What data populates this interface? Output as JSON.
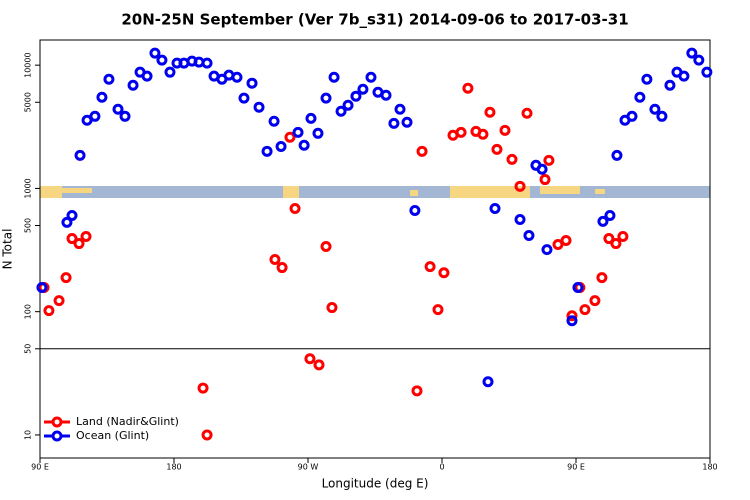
{
  "chart_data": {
    "type": "scatter",
    "title": "20N-25N September (Ver 7b_s31)   2014-09-06 to 2017-03-31",
    "x_label": "Longitude (deg E)",
    "y_label": "N Total",
    "xlim": [
      90,
      540
    ],
    "xticks": [
      {
        "value": 90,
        "label": "90 E"
      },
      {
        "value": 180,
        "label": "180"
      },
      {
        "value": 270,
        "label": "90 W"
      },
      {
        "value": 360,
        "label": "0"
      },
      {
        "value": 450,
        "label": "90 E"
      },
      {
        "value": 540,
        "label": "180"
      }
    ],
    "ylim": [
      6.5,
      16000
    ],
    "yticks": [
      10,
      50,
      100,
      500,
      1000,
      5000,
      10000
    ],
    "log_y": true,
    "grid": false,
    "hlines": [
      50
    ],
    "legend": "bottom-left",
    "series": [
      {
        "name": "Land (Nadir&Glint)",
        "color": "#ff0000",
        "x": [
          92.7,
          96.0,
          102.8,
          107.5,
          111.5,
          116.2,
          120.9,
          199.5,
          202.2,
          247.8,
          252.6,
          257.9,
          261.3,
          271.3,
          277.4,
          282.1,
          286.1,
          343.2,
          346.6,
          352.0,
          357.3,
          361.3,
          367.4,
          372.8,
          377.4,
          382.8,
          387.5,
          392.2,
          396.9,
          402.3,
          407.0,
          412.4,
          417.1,
          429.2,
          431.8,
          437.9,
          443.3,
          447.3,
          452.6,
          456.0,
          462.7,
          467.4,
          472.1,
          476.8,
          481.5
        ],
        "values": [
          157,
          102,
          123,
          189,
          392,
          357,
          407,
          24,
          10,
          265,
          228,
          2600,
          687,
          41.5,
          37,
          338,
          108,
          22.8,
          2000,
          232,
          104,
          207,
          2700,
          2850,
          6500,
          2900,
          2750,
          4150,
          2075,
          2960,
          1720,
          1040,
          4075,
          1180,
          1690,
          351,
          378,
          92.7,
          157,
          104,
          123,
          189,
          392,
          357,
          407
        ]
      },
      {
        "name": "Ocean (Glint)",
        "color": "#0000ee",
        "x": [
          91.3,
          108.1,
          111.5,
          116.9,
          121.6,
          126.9,
          131.6,
          136.3,
          142.4,
          147.1,
          152.5,
          157.2,
          161.9,
          167.2,
          171.9,
          177.3,
          182.0,
          186.7,
          192.1,
          196.8,
          202.2,
          206.9,
          212.2,
          216.9,
          222.3,
          227.0,
          232.4,
          237.1,
          242.5,
          247.2,
          251.9,
          263.3,
          267.4,
          272.0,
          276.7,
          282.1,
          287.5,
          292.2,
          296.9,
          302.2,
          306.9,
          312.3,
          317.0,
          322.4,
          327.7,
          331.8,
          336.5,
          341.8,
          390.9,
          395.6,
          412.4,
          418.4,
          423.1,
          427.2,
          430.5,
          447.3,
          451.3,
          468.1,
          472.8,
          477.5,
          482.9,
          487.6,
          492.9,
          497.6,
          503.0,
          507.7,
          513.1,
          517.8,
          522.5,
          527.8,
          532.5,
          537.9
        ],
        "values": [
          157,
          530,
          603,
          1855,
          3573,
          3846,
          5495,
          7690,
          4385,
          3846,
          6871,
          8770,
          8150,
          12530,
          10990,
          8770,
          10380,
          10380,
          10780,
          10580,
          10380,
          8150,
          7690,
          8300,
          7980,
          5400,
          7140,
          4560,
          2000,
          3510,
          2190,
          2850,
          2240,
          3700,
          2800,
          5400,
          7980,
          4230,
          4730,
          5600,
          6380,
          7980,
          6030,
          5700,
          3370,
          4385,
          3440,
          662,
          27,
          687,
          560,
          415,
          1540,
          1430,
          319,
          84.5,
          157,
          540,
          603,
          1855,
          3573,
          3846,
          5495,
          7690,
          4385,
          3846,
          6871,
          8770,
          8150,
          12530,
          10990,
          8770
        ]
      }
    ]
  }
}
